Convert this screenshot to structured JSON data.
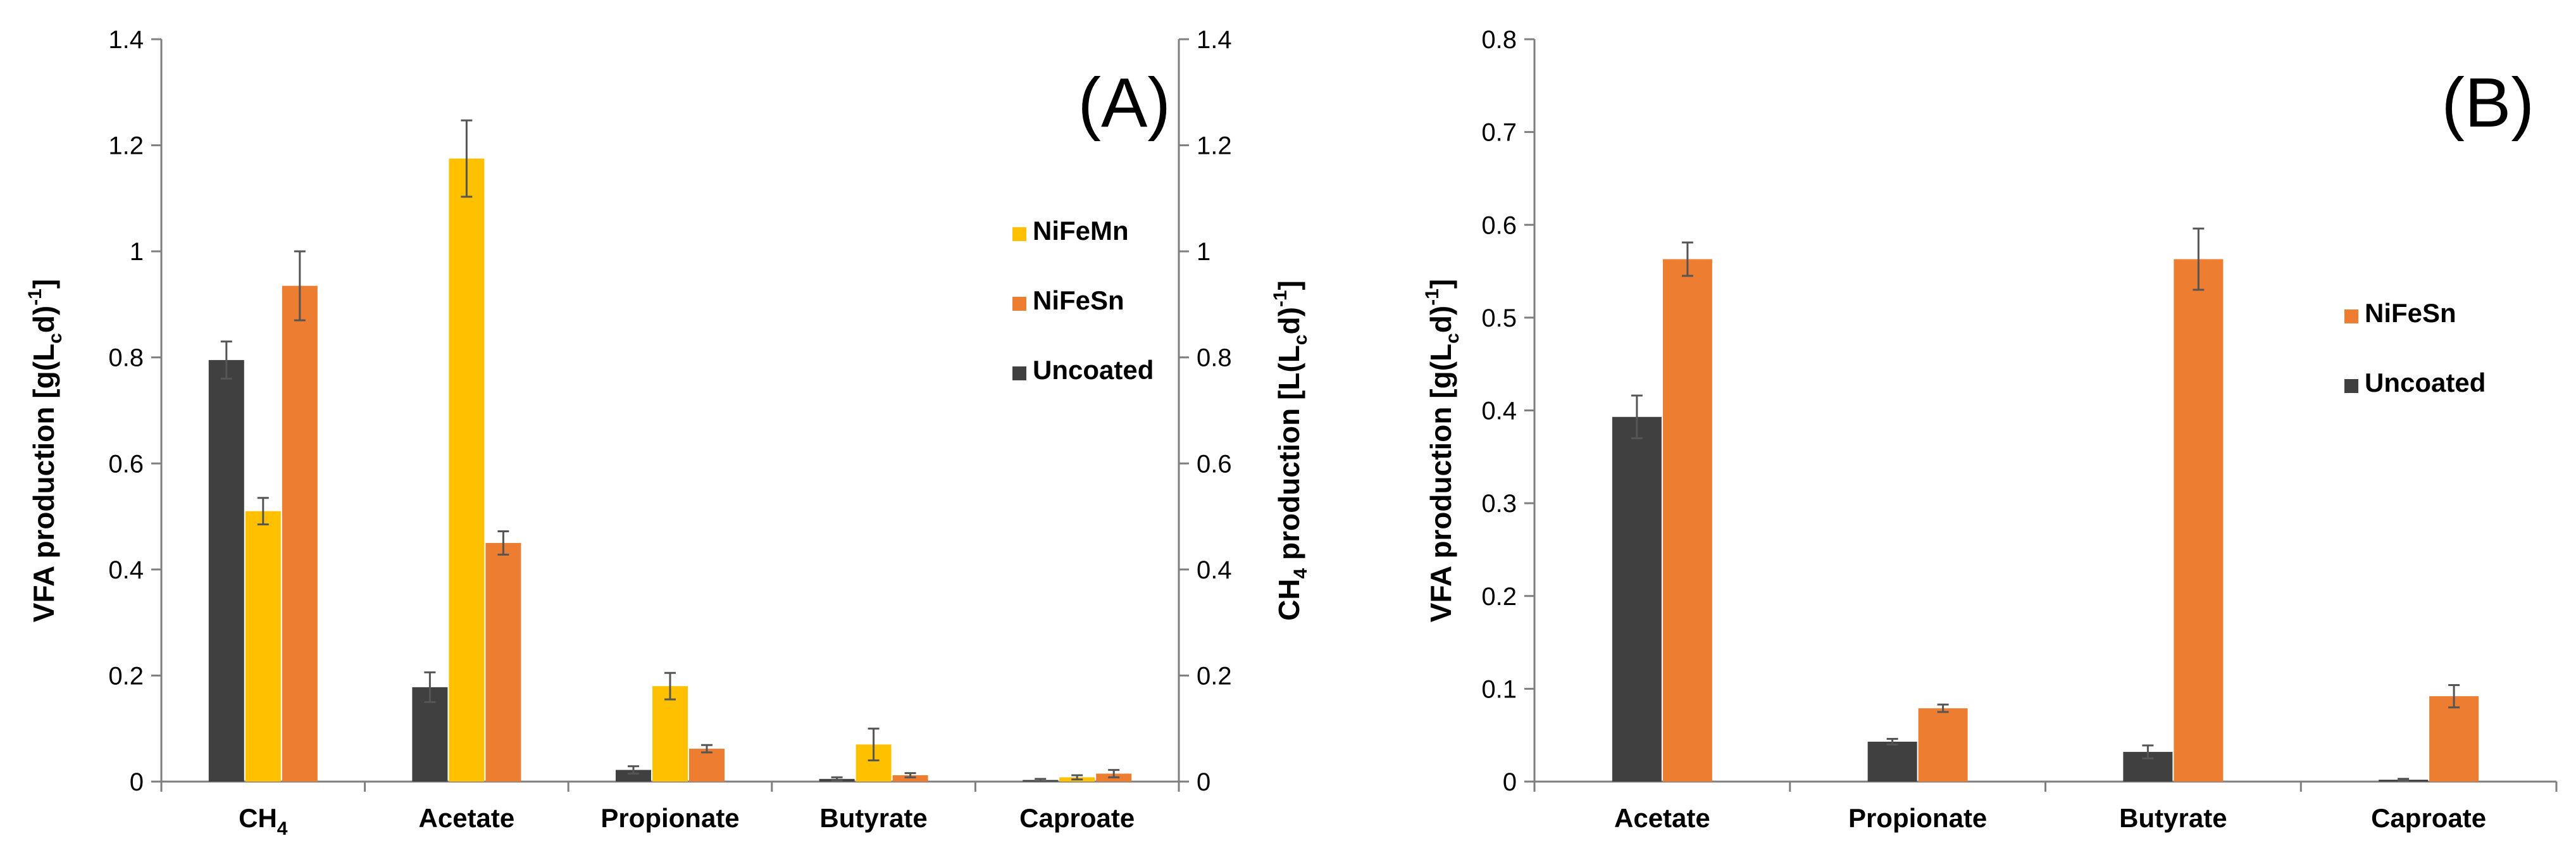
{
  "colors": {
    "NiFeMn": "#FFC000",
    "NiFeSn": "#ED7D31",
    "Uncoated": "#404040"
  },
  "chart_data": [
    {
      "type": "bar",
      "panel_label": "(A)",
      "categories": [
        "CH",
        "Acetate",
        "Propionate",
        "Butyrate",
        "Caproate"
      ],
      "category_subscripts": [
        "4",
        "",
        "",
        "",
        ""
      ],
      "series": [
        {
          "name": "Uncoated",
          "values": [
            0.795,
            0.178,
            0.022,
            0.005,
            0.003
          ],
          "errors": [
            0.035,
            0.028,
            0.007,
            0.003,
            0.002
          ]
        },
        {
          "name": "NiFeMn",
          "values": [
            0.51,
            1.175,
            0.18,
            0.07,
            0.008
          ],
          "errors": [
            0.025,
            0.072,
            0.025,
            0.03,
            0.004
          ]
        },
        {
          "name": "NiFeSn",
          "values": [
            0.935,
            0.45,
            0.062,
            0.012,
            0.015
          ],
          "errors": [
            0.065,
            0.022,
            0.007,
            0.004,
            0.007
          ]
        }
      ],
      "ylim": [
        0,
        1.4
      ],
      "y2lim": [
        0,
        1.4
      ],
      "yticks": [
        "0",
        "0.2",
        "0.4",
        "0.6",
        "0.8",
        "1",
        "1.2",
        "1.4"
      ],
      "ylabel": {
        "pre": "VFA production [g(L",
        "sub": "c",
        "mid": "d)",
        "sup": "-1",
        "post": "]"
      },
      "y2label": {
        "pre": "CH",
        "sub1": "4",
        "mid1": " production [L(L",
        "sub2": "c",
        "mid2": "d)",
        "sup": "-1",
        "post": "]"
      },
      "legend": [
        "NiFeMn",
        "NiFeSn",
        "Uncoated"
      ],
      "legend_position": "right"
    },
    {
      "type": "bar",
      "panel_label": "(B)",
      "categories": [
        "Acetate",
        "Propionate",
        "Butyrate",
        "Caproate"
      ],
      "category_subscripts": [
        "",
        "",
        "",
        ""
      ],
      "series": [
        {
          "name": "Uncoated",
          "values": [
            0.393,
            0.043,
            0.032,
            0.002
          ],
          "errors": [
            0.023,
            0.003,
            0.007,
            0.001
          ]
        },
        {
          "name": "NiFeSn",
          "values": [
            0.563,
            0.079,
            0.563,
            0.092
          ],
          "errors": [
            0.018,
            0.004,
            0.033,
            0.012
          ]
        }
      ],
      "ylim": [
        0,
        0.8
      ],
      "yticks": [
        "0",
        "0.1",
        "0.2",
        "0.3",
        "0.4",
        "0.5",
        "0.6",
        "0.7",
        "0.8"
      ],
      "ylabel": {
        "pre": "VFA production [g(L",
        "sub": "c",
        "mid": "d)",
        "sup": "-1",
        "post": "]"
      },
      "legend": [
        "NiFeSn",
        "Uncoated"
      ],
      "legend_position": "right"
    }
  ]
}
